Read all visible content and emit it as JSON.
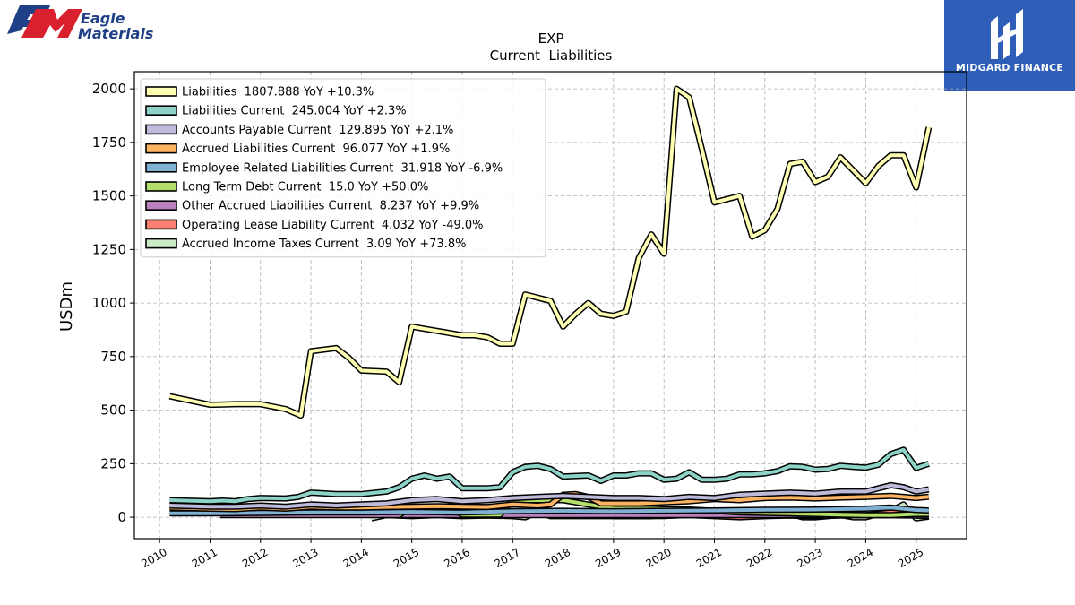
{
  "brand_left": {
    "mark": "EM",
    "line1": "Eagle",
    "line2": "Materials"
  },
  "brand_right": {
    "name": "MIDGARD FINANCE"
  },
  "chart_data": {
    "type": "area",
    "title": "EXP",
    "subtitle": "Current  Liabilities",
    "ylabel": "USDm",
    "xlabel": "",
    "ylim": [
      -100,
      2080
    ],
    "xlim": [
      2009.5,
      2026.0
    ],
    "yticks": [
      0,
      250,
      500,
      750,
      1000,
      1250,
      1500,
      1750,
      2000
    ],
    "xticks": [
      "2010",
      "2011",
      "2012",
      "2013",
      "2014",
      "2015",
      "2016",
      "2017",
      "2018",
      "2019",
      "2020",
      "2021",
      "2022",
      "2023",
      "2024",
      "2025"
    ],
    "grid": true,
    "legend_position": "top-left",
    "series": [
      {
        "name": "Liabilities",
        "legend": "Liabilities  1807.888 YoY +10.3%",
        "color": "#ffffb3",
        "points": [
          [
            2010.2,
            565
          ],
          [
            2011.0,
            525
          ],
          [
            2011.5,
            528
          ],
          [
            2012.0,
            528
          ],
          [
            2012.5,
            505
          ],
          [
            2012.8,
            475
          ],
          [
            2013.0,
            775
          ],
          [
            2013.5,
            790
          ],
          [
            2013.75,
            745
          ],
          [
            2014.0,
            685
          ],
          [
            2014.5,
            680
          ],
          [
            2014.75,
            630
          ],
          [
            2015.0,
            890
          ],
          [
            2015.25,
            880
          ],
          [
            2015.5,
            870
          ],
          [
            2015.75,
            860
          ],
          [
            2016.0,
            850
          ],
          [
            2016.25,
            850
          ],
          [
            2016.5,
            840
          ],
          [
            2016.75,
            810
          ],
          [
            2017.0,
            810
          ],
          [
            2017.25,
            1040
          ],
          [
            2017.75,
            1010
          ],
          [
            2018.0,
            890
          ],
          [
            2018.25,
            950
          ],
          [
            2018.5,
            1000
          ],
          [
            2018.75,
            950
          ],
          [
            2019.0,
            940
          ],
          [
            2019.25,
            960
          ],
          [
            2019.5,
            1210
          ],
          [
            2019.75,
            1320
          ],
          [
            2020.0,
            1230
          ],
          [
            2020.25,
            2000
          ],
          [
            2020.5,
            1960
          ],
          [
            2020.75,
            1720
          ],
          [
            2021.0,
            1470
          ],
          [
            2021.5,
            1500
          ],
          [
            2021.75,
            1310
          ],
          [
            2022.0,
            1340
          ],
          [
            2022.25,
            1440
          ],
          [
            2022.5,
            1650
          ],
          [
            2022.75,
            1660
          ],
          [
            2023.0,
            1565
          ],
          [
            2023.25,
            1590
          ],
          [
            2023.5,
            1680
          ],
          [
            2023.75,
            1620
          ],
          [
            2024.0,
            1560
          ],
          [
            2024.25,
            1640
          ],
          [
            2024.5,
            1690
          ],
          [
            2024.75,
            1690
          ],
          [
            2025.0,
            1540
          ],
          [
            2025.25,
            1820
          ]
        ]
      },
      {
        "name": "Liabilities Current",
        "legend": "Liabilities Current  245.004 YoY +2.3%",
        "color": "#8dd3c7",
        "points": [
          [
            2010.2,
            80
          ],
          [
            2011.0,
            75
          ],
          [
            2011.25,
            78
          ],
          [
            2011.5,
            75
          ],
          [
            2011.75,
            85
          ],
          [
            2012.0,
            90
          ],
          [
            2012.5,
            88
          ],
          [
            2012.75,
            95
          ],
          [
            2013.0,
            115
          ],
          [
            2013.5,
            108
          ],
          [
            2014.0,
            108
          ],
          [
            2014.5,
            120
          ],
          [
            2014.75,
            140
          ],
          [
            2015.0,
            180
          ],
          [
            2015.25,
            195
          ],
          [
            2015.5,
            180
          ],
          [
            2015.75,
            190
          ],
          [
            2016.0,
            135
          ],
          [
            2016.25,
            135
          ],
          [
            2016.5,
            135
          ],
          [
            2016.75,
            140
          ],
          [
            2017.0,
            210
          ],
          [
            2017.25,
            235
          ],
          [
            2017.5,
            240
          ],
          [
            2017.75,
            225
          ],
          [
            2018.0,
            190
          ],
          [
            2018.5,
            195
          ],
          [
            2018.75,
            170
          ],
          [
            2019.0,
            195
          ],
          [
            2019.25,
            195
          ],
          [
            2019.5,
            205
          ],
          [
            2019.75,
            205
          ],
          [
            2020.0,
            175
          ],
          [
            2020.25,
            180
          ],
          [
            2020.5,
            210
          ],
          [
            2020.75,
            175
          ],
          [
            2021.0,
            175
          ],
          [
            2021.25,
            180
          ],
          [
            2021.5,
            200
          ],
          [
            2021.75,
            200
          ],
          [
            2022.0,
            205
          ],
          [
            2022.25,
            215
          ],
          [
            2022.5,
            238
          ],
          [
            2022.75,
            235
          ],
          [
            2023.0,
            222
          ],
          [
            2023.25,
            225
          ],
          [
            2023.5,
            240
          ],
          [
            2023.75,
            235
          ],
          [
            2024.0,
            232
          ],
          [
            2024.25,
            245
          ],
          [
            2024.5,
            295
          ],
          [
            2024.75,
            315
          ],
          [
            2025.0,
            230
          ],
          [
            2025.25,
            250
          ]
        ]
      },
      {
        "name": "Accounts Payable Current",
        "legend": "Accounts Payable Current  129.895 YoY +2.1%",
        "color": "#bebada",
        "points": [
          [
            2010.2,
            55
          ],
          [
            2011.0,
            50
          ],
          [
            2011.5,
            50
          ],
          [
            2012.0,
            55
          ],
          [
            2012.5,
            50
          ],
          [
            2013.0,
            60
          ],
          [
            2013.5,
            55
          ],
          [
            2014.0,
            60
          ],
          [
            2014.5,
            65
          ],
          [
            2015.0,
            80
          ],
          [
            2015.5,
            85
          ],
          [
            2016.0,
            75
          ],
          [
            2016.5,
            80
          ],
          [
            2017.0,
            90
          ],
          [
            2017.5,
            95
          ],
          [
            2018.0,
            100
          ],
          [
            2018.5,
            95
          ],
          [
            2019.0,
            90
          ],
          [
            2019.5,
            90
          ],
          [
            2020.0,
            85
          ],
          [
            2020.5,
            95
          ],
          [
            2021.0,
            90
          ],
          [
            2021.5,
            105
          ],
          [
            2022.0,
            110
          ],
          [
            2022.5,
            115
          ],
          [
            2023.0,
            110
          ],
          [
            2023.5,
            120
          ],
          [
            2024.0,
            120
          ],
          [
            2024.5,
            150
          ],
          [
            2024.75,
            140
          ],
          [
            2025.0,
            120
          ],
          [
            2025.25,
            130
          ]
        ]
      },
      {
        "name": "Accrued Liabilities Current",
        "legend": "Accrued Liabilities Current  96.077 YoY +1.9%",
        "color": "#fdb462",
        "points": [
          [
            2010.2,
            45
          ],
          [
            2011.0,
            40
          ],
          [
            2011.5,
            38
          ],
          [
            2012.0,
            45
          ],
          [
            2012.5,
            40
          ],
          [
            2013.0,
            50
          ],
          [
            2013.5,
            45
          ],
          [
            2014.0,
            45
          ],
          [
            2014.5,
            48
          ],
          [
            2015.0,
            50
          ],
          [
            2015.5,
            52
          ],
          [
            2016.0,
            50
          ],
          [
            2016.5,
            48
          ],
          [
            2017.0,
            60
          ],
          [
            2017.5,
            55
          ],
          [
            2017.75,
            60
          ],
          [
            2018.0,
            105
          ],
          [
            2018.25,
            108
          ],
          [
            2018.5,
            95
          ],
          [
            2018.75,
            65
          ],
          [
            2019.0,
            65
          ],
          [
            2019.5,
            65
          ],
          [
            2020.0,
            70
          ],
          [
            2020.5,
            75
          ],
          [
            2021.0,
            85
          ],
          [
            2021.5,
            80
          ],
          [
            2022.0,
            90
          ],
          [
            2022.5,
            92
          ],
          [
            2023.0,
            88
          ],
          [
            2023.5,
            92
          ],
          [
            2024.0,
            95
          ],
          [
            2024.5,
            100
          ],
          [
            2024.75,
            95
          ],
          [
            2025.0,
            90
          ],
          [
            2025.25,
            96
          ]
        ]
      },
      {
        "name": "Employee Related Liabilities Current",
        "legend": "Employee Related Liabilities Current  31.918 YoY -6.9%",
        "color": "#80b1d3",
        "points": [
          [
            2010.2,
            18
          ],
          [
            2011.0,
            18
          ],
          [
            2012.0,
            20
          ],
          [
            2013.0,
            22
          ],
          [
            2014.0,
            22
          ],
          [
            2015.0,
            25
          ],
          [
            2016.0,
            22
          ],
          [
            2017.0,
            28
          ],
          [
            2018.0,
            30
          ],
          [
            2019.0,
            28
          ],
          [
            2020.0,
            30
          ],
          [
            2021.0,
            32
          ],
          [
            2022.0,
            35
          ],
          [
            2023.0,
            36
          ],
          [
            2024.0,
            40
          ],
          [
            2024.5,
            45
          ],
          [
            2025.0,
            34
          ],
          [
            2025.25,
            32
          ]
        ]
      },
      {
        "name": "Long Term Debt Current",
        "legend": "Long Term Debt Current  15.0 YoY +50.0%",
        "color": "#b3de69",
        "points": [
          [
            2014.75,
            10
          ],
          [
            2015.0,
            50
          ],
          [
            2015.75,
            50
          ],
          [
            2016.0,
            12
          ],
          [
            2016.75,
            12
          ],
          [
            2017.0,
            80
          ],
          [
            2018.0,
            80
          ],
          [
            2018.5,
            60
          ],
          [
            2019.0,
            40
          ],
          [
            2019.75,
            40
          ],
          [
            2020.0,
            38
          ],
          [
            2020.5,
            36
          ],
          [
            2021.0,
            30
          ],
          [
            2021.5,
            22
          ],
          [
            2022.0,
            20
          ],
          [
            2022.5,
            18
          ],
          [
            2023.0,
            15
          ],
          [
            2023.5,
            12
          ],
          [
            2024.0,
            10
          ],
          [
            2024.5,
            10
          ],
          [
            2025.0,
            15
          ],
          [
            2025.25,
            15
          ]
        ]
      },
      {
        "name": "Other Accrued Liabilities Current",
        "legend": "Other Accrued Liabilities Current  8.237 YoY +9.9%",
        "color": "#bc80bd",
        "points": [
          [
            2011.2,
            10
          ],
          [
            2012.0,
            10
          ],
          [
            2013.0,
            10
          ],
          [
            2014.0,
            10
          ],
          [
            2015.0,
            10
          ],
          [
            2016.0,
            10
          ],
          [
            2017.0,
            10
          ],
          [
            2018.0,
            10
          ],
          [
            2019.0,
            10
          ],
          [
            2020.0,
            10
          ],
          [
            2021.0,
            10
          ],
          [
            2022.0,
            10
          ],
          [
            2023.0,
            10
          ],
          [
            2024.0,
            10
          ],
          [
            2025.0,
            8
          ],
          [
            2025.25,
            8.2
          ]
        ]
      },
      {
        "name": "Operating Lease Liability Current",
        "legend": "Operating Lease Liability Current  4.032 YoY -49.0%",
        "color": "#fb8072",
        "points": [
          [
            2019.0,
            5
          ],
          [
            2019.5,
            5
          ],
          [
            2020.0,
            6
          ],
          [
            2020.5,
            10
          ],
          [
            2021.0,
            5
          ],
          [
            2021.5,
            0
          ],
          [
            2022.0,
            5
          ],
          [
            2022.5,
            8
          ],
          [
            2023.0,
            5
          ],
          [
            2023.5,
            8
          ],
          [
            2024.0,
            10
          ],
          [
            2024.5,
            22
          ],
          [
            2024.75,
            25
          ],
          [
            2025.0,
            8
          ],
          [
            2025.25,
            4
          ]
        ]
      },
      {
        "name": "Accrued Income Taxes Current",
        "legend": "Accrued Income Taxes Current  3.09 YoY +73.8%",
        "color": "#ccebc5",
        "points": [
          [
            2014.2,
            -5
          ],
          [
            2014.5,
            10
          ],
          [
            2015.0,
            5
          ],
          [
            2015.5,
            10
          ],
          [
            2016.0,
            5
          ],
          [
            2016.5,
            8
          ],
          [
            2017.0,
            5
          ],
          [
            2017.25,
            0
          ],
          [
            2017.5,
            25
          ],
          [
            2017.75,
            5
          ],
          [
            2018.0,
            5
          ],
          [
            2019.0,
            5
          ],
          [
            2019.75,
            5
          ],
          [
            2020.0,
            15
          ],
          [
            2020.5,
            25
          ],
          [
            2021.0,
            15
          ],
          [
            2021.5,
            5
          ],
          [
            2022.0,
            10
          ],
          [
            2022.5,
            15
          ],
          [
            2022.75,
            0
          ],
          [
            2023.0,
            0
          ],
          [
            2023.5,
            10
          ],
          [
            2023.75,
            0
          ],
          [
            2024.0,
            0
          ],
          [
            2024.5,
            30
          ],
          [
            2024.75,
            60
          ],
          [
            2025.0,
            -5
          ],
          [
            2025.25,
            3
          ]
        ]
      }
    ]
  }
}
